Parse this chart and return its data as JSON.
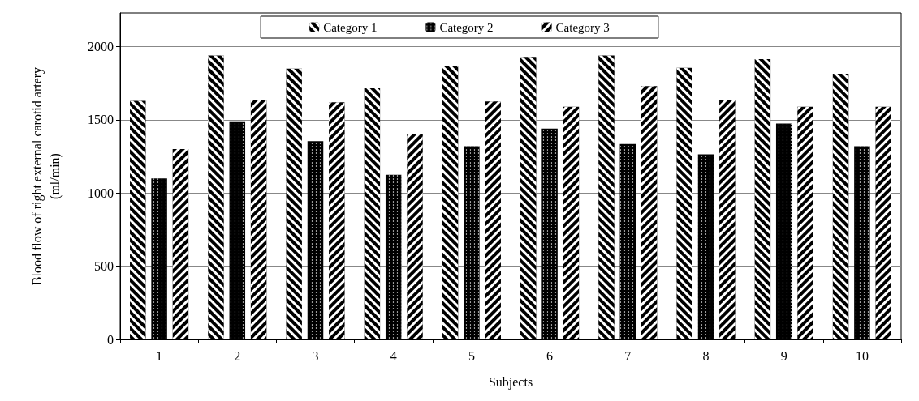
{
  "chart_data": {
    "type": "bar",
    "xlabel": "Subjects",
    "ylabel": "Blood flow of right external carotid artery\n(ml/min)",
    "categories": [
      "1",
      "2",
      "3",
      "4",
      "5",
      "6",
      "7",
      "8",
      "9",
      "10"
    ],
    "series": [
      {
        "name": "Category 1",
        "color": "#000000",
        "values": [
          1630,
          1940,
          1850,
          1715,
          1870,
          1930,
          1940,
          1855,
          1915,
          1815
        ]
      },
      {
        "name": "Category 2",
        "color": "#000000",
        "values": [
          1100,
          1490,
          1355,
          1125,
          1320,
          1440,
          1335,
          1265,
          1475,
          1320
        ]
      },
      {
        "name": "Category 3",
        "color": "#000000",
        "values": [
          1300,
          1635,
          1620,
          1400,
          1625,
          1590,
          1730,
          1635,
          1590,
          1590
        ]
      }
    ],
    "ylim": [
      0,
      2230
    ],
    "yticks": [
      0,
      500,
      1000,
      1500,
      2000
    ],
    "grid": "y",
    "legend": "top"
  }
}
